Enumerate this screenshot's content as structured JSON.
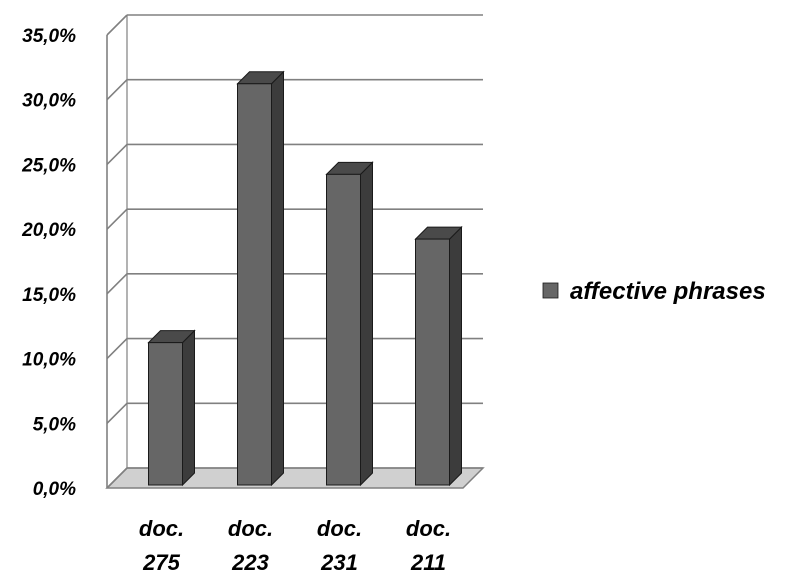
{
  "chart_data": {
    "type": "bar",
    "style": "3d-column",
    "categories": [
      [
        "doc.",
        "275"
      ],
      [
        "doc.",
        "223"
      ],
      [
        "doc.",
        "231"
      ],
      [
        "doc.",
        "211"
      ]
    ],
    "series": [
      {
        "name": "affective phrases",
        "values": [
          11.0,
          31.0,
          24.0,
          19.0
        ]
      }
    ],
    "ylim": [
      0,
      35
    ],
    "yticks": [
      "0,0%",
      "5,0%",
      "10,0%",
      "15,0%",
      "20,0%",
      "25,0%",
      "30,0%",
      "35,0%"
    ],
    "grid": true,
    "legend": "right",
    "colors": {
      "bar_front": "#666666",
      "bar_side": "#3c3c3c",
      "bar_top": "#4a4a4a",
      "grid": "#808080",
      "floor": "#d0d0d0"
    }
  }
}
